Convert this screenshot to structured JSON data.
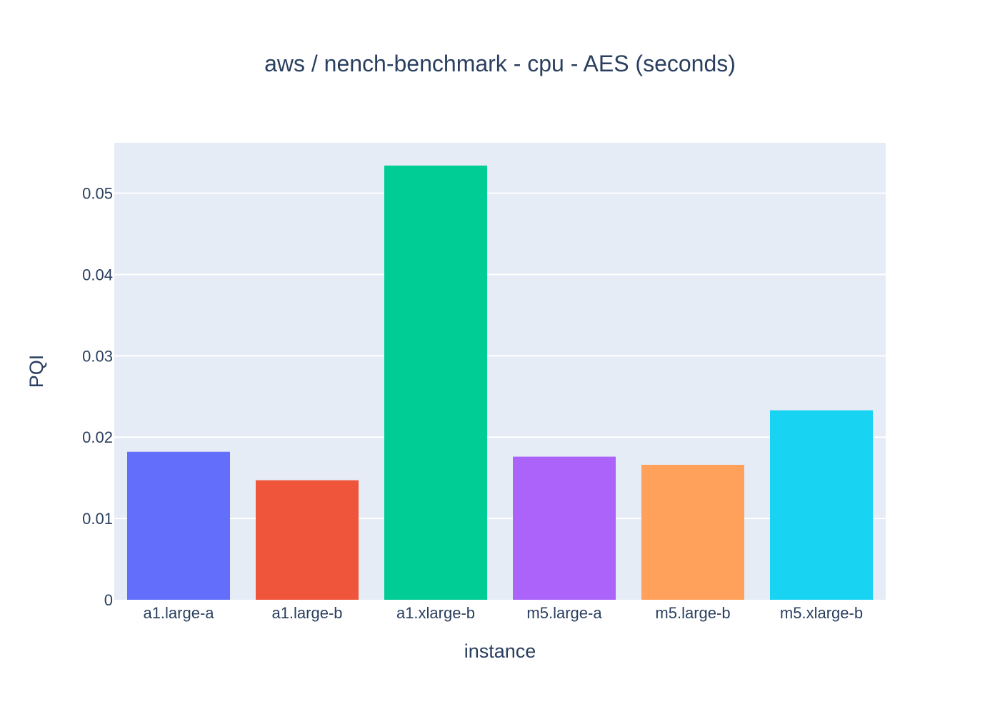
{
  "chart_data": {
    "type": "bar",
    "title": "aws / nench-benchmark - cpu - AES (seconds)",
    "xlabel": "instance",
    "ylabel": "PQI",
    "categories": [
      "a1.large-a",
      "a1.large-b",
      "a1.xlarge-b",
      "m5.large-a",
      "m5.large-b",
      "m5.xlarge-b"
    ],
    "values": [
      0.0182,
      0.0147,
      0.0534,
      0.0176,
      0.0166,
      0.0233
    ],
    "colors": [
      "#636efa",
      "#ef553b",
      "#00cc96",
      "#ab63fa",
      "#ffa15a",
      "#19d3f3"
    ],
    "ylim": [
      0,
      0.0562
    ],
    "yticks": [
      0,
      0.01,
      0.02,
      0.03,
      0.04,
      0.05
    ],
    "ytick_labels": [
      "0",
      "0.01",
      "0.02",
      "0.03",
      "0.04",
      "0.05"
    ],
    "grid": true,
    "legend": "none",
    "plot_background": "#e5ecf6"
  }
}
